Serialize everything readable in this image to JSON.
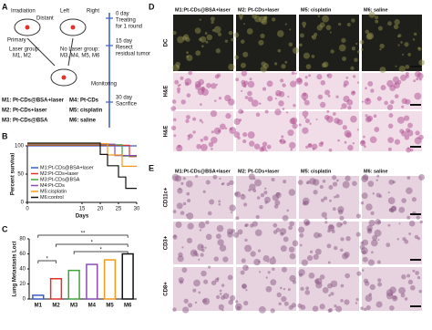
{
  "panel_a": {
    "letter": "A",
    "labels": [
      "Irradiation",
      "Distant",
      "Left",
      "Right",
      "Primary"
    ],
    "laser_group": "Laser group:",
    "laser_members": "M1, M2",
    "no_laser_group": "No Laser group:",
    "no_laser_members": "M3, M4, M5, M6",
    "timeline": [
      {
        "day": "0 day",
        "lines": [
          "Treating",
          "for 1 round"
        ]
      },
      {
        "day": "15 day",
        "lines": [
          "Resect",
          "residual tumor"
        ]
      },
      {
        "day": "",
        "lines": [
          "Monitoring"
        ]
      },
      {
        "day": "30 day",
        "lines": [
          "Sacrifice"
        ]
      }
    ],
    "groups": [
      "M1: Pt-CDs@BSA+laser",
      "M2: Pt-CDs+laser",
      "M3: Pt-CDs@BSA",
      "M4: Pt-CDs",
      "M5: cisplatin",
      "M6: saline"
    ]
  },
  "chart_data": [
    {
      "letter": "B",
      "type": "line",
      "xlabel": "Days",
      "ylabel": "Percent survival",
      "xlim": [
        0,
        30
      ],
      "ylim": [
        0,
        100
      ],
      "xticks": [
        0,
        15,
        20,
        25,
        30
      ],
      "yticks": [
        0,
        50,
        100
      ],
      "legend": "lower left",
      "series": [
        {
          "name": "M1:Pt-CDs@BSA+laser",
          "color": "#3b5bc4",
          "x": [
            0,
            30
          ],
          "values": [
            100,
            100
          ]
        },
        {
          "name": "M2:Pt-CDs+laser",
          "color": "#e0312a",
          "x": [
            0,
            28,
            28,
            30
          ],
          "values": [
            100,
            100,
            80,
            80
          ]
        },
        {
          "name": "M3:Pt-CDs@BSA",
          "color": "#3da53a",
          "x": [
            0,
            26,
            26,
            30
          ],
          "values": [
            100,
            100,
            80,
            80
          ]
        },
        {
          "name": "M4:Pt-CDs",
          "color": "#8e4bb5",
          "x": [
            0,
            24,
            24,
            30
          ],
          "values": [
            100,
            100,
            80,
            80
          ]
        },
        {
          "name": "M5:cisplatin",
          "color": "#f39a1e",
          "x": [
            0,
            22,
            22,
            26,
            26,
            30
          ],
          "values": [
            100,
            100,
            80,
            80,
            60,
            60
          ]
        },
        {
          "name": "M6:control",
          "color": "#111111",
          "x": [
            0,
            20,
            20,
            22,
            22,
            25,
            25,
            27,
            27,
            30
          ],
          "values": [
            100,
            100,
            80,
            80,
            60,
            60,
            40,
            40,
            20,
            20
          ]
        }
      ]
    },
    {
      "letter": "C",
      "type": "bar",
      "ylabel": "Lung Metastasis Loci",
      "ylim": [
        0,
        80
      ],
      "yticks": [
        0,
        20,
        40,
        60,
        80
      ],
      "categories": [
        "M1",
        "M2",
        "M3",
        "M4",
        "M5",
        "M6"
      ],
      "values": [
        5,
        27,
        38,
        46,
        52,
        60
      ],
      "colors": [
        "#3b5bc4",
        "#e0312a",
        "#3da53a",
        "#8e4bb5",
        "#f39a1e",
        "#111111"
      ],
      "annotations": [
        "**",
        "*",
        "*",
        "*"
      ]
    }
  ],
  "panel_d": {
    "letter": "D",
    "columns": [
      "M1:Pt-CDs@BSA+laser",
      "M2: Pt-CDs+laser",
      "M5: cisplatin",
      "M6: saline"
    ],
    "rows": [
      "DC",
      "H&E",
      "H&E"
    ]
  },
  "panel_e": {
    "letter": "E",
    "columns": [
      "M1:Pt-CDs@BSA+laser",
      "M2: Pt-CDs+laser",
      "M5: cisplatin",
      "M6: saline"
    ],
    "rows": [
      "CD11c+",
      "CD3+",
      "CD8+"
    ]
  }
}
